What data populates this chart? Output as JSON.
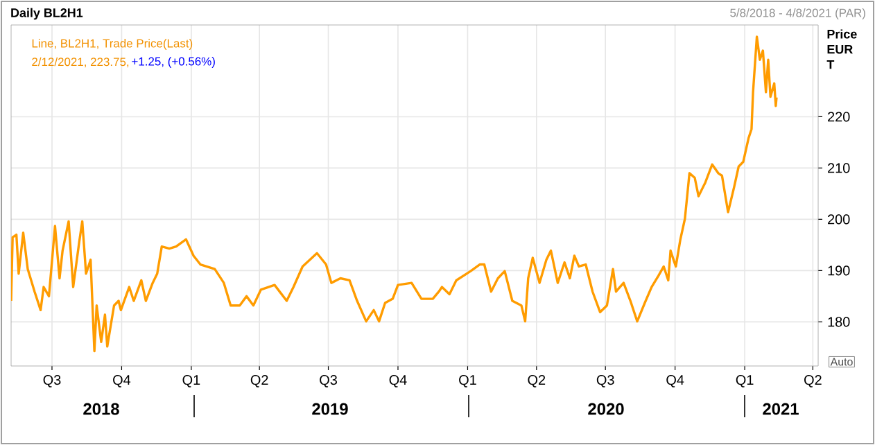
{
  "chart_data": {
    "type": "line",
    "title": "Daily BL2H1",
    "subtitle": "5/8/2018 - 4/8/2021 (PAR)",
    "ylabel": "Price EUR T",
    "annotations": [
      "Line, BL2H1, Trade Price(Last)",
      "2/12/2021, 223.75,",
      "+1.25, (+0.56%)",
      "2018",
      "2019",
      "2020",
      "2021",
      "Auto"
    ],
    "x": [
      "2018-05-08",
      "2018-05-10",
      "2018-05-15",
      "2018-05-18",
      "2018-05-24",
      "2018-05-30",
      "2018-06-08",
      "2018-06-16",
      "2018-06-20",
      "2018-06-27",
      "2018-07-05",
      "2018-07-11",
      "2018-07-15",
      "2018-07-23",
      "2018-07-29",
      "2018-08-06",
      "2018-08-10",
      "2018-08-15",
      "2018-08-21",
      "2018-08-26",
      "2018-08-29",
      "2018-09-04",
      "2018-09-09",
      "2018-09-12",
      "2018-09-21",
      "2018-09-27",
      "2018-09-30",
      "2018-10-11",
      "2018-10-17",
      "2018-10-27",
      "2018-11-02",
      "2018-11-11",
      "2018-11-17",
      "2018-11-23",
      "2018-12-03",
      "2018-12-12",
      "2018-12-25",
      "2019-01-04",
      "2019-01-13",
      "2019-02-01",
      "2019-02-13",
      "2019-02-22",
      "2019-03-06",
      "2019-03-15",
      "2019-03-24",
      "2019-04-03",
      "2019-04-21",
      "2019-05-07",
      "2019-05-16",
      "2019-05-28",
      "2019-06-16",
      "2019-06-28",
      "2019-07-05",
      "2019-07-17",
      "2019-07-29",
      "2019-08-08",
      "2019-08-20",
      "2019-08-30",
      "2019-09-06",
      "2019-09-14",
      "2019-09-24",
      "2019-10-01",
      "2019-10-19",
      "2019-11-01",
      "2019-11-16",
      "2019-11-24",
      "2019-11-28",
      "2019-12-08",
      "2019-12-17",
      "2020-01-05",
      "2020-01-17",
      "2020-01-23",
      "2020-02-01",
      "2020-02-10",
      "2020-02-19",
      "2020-02-29",
      "2020-03-12",
      "2020-03-17",
      "2020-03-21",
      "2020-03-27",
      "2020-04-05",
      "2020-04-14",
      "2020-04-20",
      "2020-04-29",
      "2020-05-08",
      "2020-05-15",
      "2020-05-21",
      "2020-05-27",
      "2020-06-05",
      "2020-06-14",
      "2020-06-24",
      "2020-07-03",
      "2020-07-11",
      "2020-07-15",
      "2020-07-25",
      "2020-08-03",
      "2020-08-12",
      "2020-08-22",
      "2020-08-31",
      "2020-09-09",
      "2020-09-16",
      "2020-09-22",
      "2020-09-25",
      "2020-09-29",
      "2020-10-02",
      "2020-10-08",
      "2020-10-14",
      "2020-10-20",
      "2020-10-27",
      "2020-11-01",
      "2020-11-10",
      "2020-11-19",
      "2020-11-27",
      "2020-12-02",
      "2020-12-10",
      "2020-12-18",
      "2020-12-24",
      "2020-12-30",
      "2021-01-06",
      "2021-01-10",
      "2021-01-12",
      "2021-01-17",
      "2021-01-21",
      "2021-01-25",
      "2021-01-29",
      "2021-02-01",
      "2021-02-04",
      "2021-02-09",
      "2021-02-11",
      "2021-02-12"
    ],
    "series": [
      {
        "color": "#ff9c00",
        "values": [
          184.1,
          196.5,
          197.0,
          189.4,
          197.4,
          190.3,
          185.9,
          182.3,
          186.8,
          185.0,
          198.7,
          188.5,
          193.9,
          199.6,
          186.8,
          195.6,
          199.6,
          189.4,
          192.1,
          174.3,
          183.2,
          176.1,
          181.4,
          175.2,
          183.2,
          184.1,
          182.3,
          186.8,
          184.1,
          188.1,
          184.1,
          187.6,
          189.4,
          194.7,
          194.3,
          194.7,
          196.1,
          192.9,
          191.2,
          190.3,
          187.6,
          183.2,
          183.2,
          185.0,
          183.2,
          186.3,
          187.2,
          184.1,
          186.8,
          190.8,
          193.4,
          191.2,
          187.6,
          188.5,
          188.1,
          184.1,
          180.1,
          182.3,
          180.1,
          183.7,
          184.5,
          187.2,
          187.6,
          184.5,
          184.5,
          185.9,
          186.8,
          185.4,
          188.1,
          189.9,
          191.2,
          191.2,
          185.9,
          188.5,
          189.9,
          184.1,
          183.2,
          180.1,
          188.5,
          192.5,
          187.6,
          192.1,
          193.9,
          187.6,
          191.6,
          188.5,
          192.9,
          190.8,
          191.2,
          185.9,
          181.9,
          183.2,
          190.3,
          185.9,
          187.6,
          184.1,
          180.1,
          183.7,
          186.8,
          189.0,
          190.8,
          188.1,
          193.9,
          192.1,
          190.8,
          196.1,
          200.1,
          209.0,
          208.1,
          204.5,
          207.2,
          210.7,
          209.0,
          208.5,
          201.4,
          206.3,
          210.3,
          211.2,
          215.8,
          217.6,
          224.8,
          235.6,
          231.1,
          232.9,
          224.8,
          231.1,
          223.9,
          226.5,
          222.1,
          223.75
        ]
      }
    ],
    "xlim": [
      "2018-05-08",
      "2021-04-08"
    ],
    "xticks": [
      {
        "value": "2018-07-01",
        "label": "Q3"
      },
      {
        "value": "2018-10-01",
        "label": "Q4"
      },
      {
        "value": "2019-01-01",
        "label": "Q1"
      },
      {
        "value": "2019-04-01",
        "label": "Q2"
      },
      {
        "value": "2019-07-01",
        "label": "Q3"
      },
      {
        "value": "2019-10-01",
        "label": "Q4"
      },
      {
        "value": "2020-01-01",
        "label": "Q1"
      },
      {
        "value": "2020-04-01",
        "label": "Q2"
      },
      {
        "value": "2020-07-01",
        "label": "Q3"
      },
      {
        "value": "2020-10-01",
        "label": "Q4"
      },
      {
        "value": "2021-01-01",
        "label": "Q1"
      },
      {
        "value": "2021-04-01",
        "label": "Q2"
      }
    ],
    "ylim": [
      171.4,
      237.9
    ],
    "yticks": [
      180,
      190,
      200,
      210,
      220
    ],
    "grid": true
  }
}
